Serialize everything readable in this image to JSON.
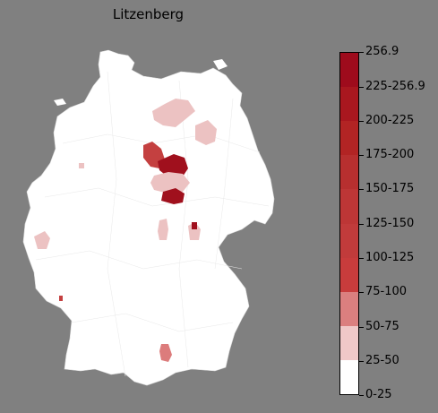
{
  "title": "Litzenberg",
  "legend": {
    "labels": [
      "0-25",
      "25-50",
      "50-75",
      "75-100",
      "100-125",
      "125-150",
      "150-175",
      "175-200",
      "200-225",
      "225-256.9",
      "256.9"
    ],
    "colors": [
      "#ffffff",
      "#f0c8c8",
      "#db7f7f",
      "#c83c3c",
      "#c13b3b",
      "#bd3636",
      "#b72f2f",
      "#b22424",
      "#a9171f",
      "#9e0b1c"
    ]
  },
  "regions_highlighted": [
    {
      "band": "25-50",
      "color": "#ecc2c2"
    },
    {
      "band": "50-75",
      "color": "#dc7c7c"
    },
    {
      "band": "125-150",
      "color": "#c44040"
    },
    {
      "band": "225-256.9",
      "color": "#a0101d"
    }
  ]
}
